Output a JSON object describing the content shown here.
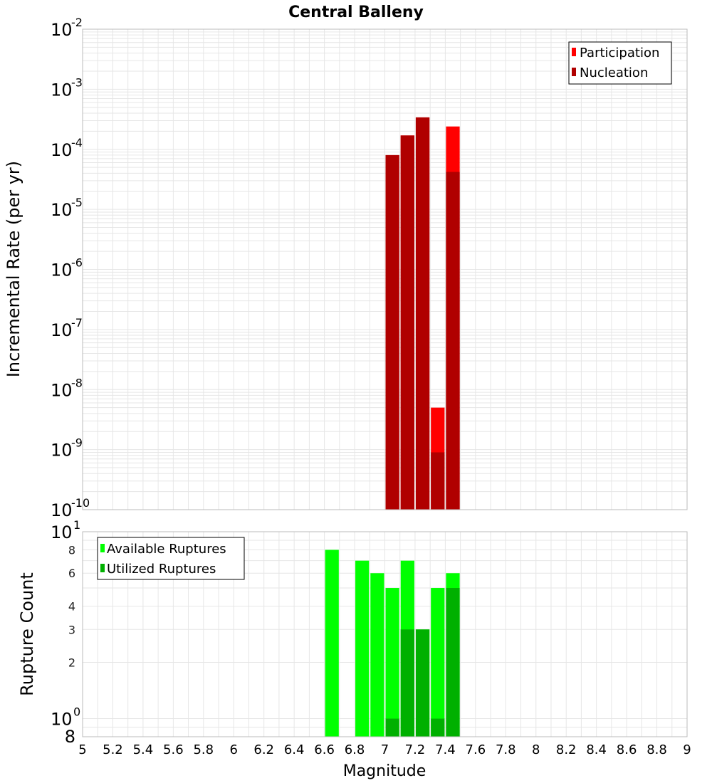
{
  "chart_data": [
    {
      "type": "bar",
      "title": "Central Balleny",
      "xlabel": "",
      "ylabel": "Incremental Rate (per yr)",
      "yscale": "log",
      "ylim": [
        1e-10,
        0.01
      ],
      "xlim": [
        5,
        9
      ],
      "bar_width": 0.1,
      "grid": true,
      "legend_position": "top-right",
      "x": [
        7.05,
        7.15,
        7.25,
        7.35,
        7.45
      ],
      "series": [
        {
          "name": "Participation",
          "color": "#ff0000",
          "values": [
            8e-05,
            0.00017,
            0.00034,
            5e-09,
            0.00024
          ]
        },
        {
          "name": "Nucleation",
          "color": "#b00000",
          "values": [
            8e-05,
            0.00017,
            0.00034,
            9e-10,
            4.2e-05
          ]
        }
      ],
      "y_tick_exponents": [
        "-2",
        "-3",
        "-4",
        "-5",
        "-6",
        "-7",
        "-8",
        "-9",
        "-10"
      ]
    },
    {
      "type": "bar",
      "title": "",
      "xlabel": "Magnitude",
      "ylabel": "Rupture Count",
      "yscale": "log",
      "ylim": [
        0.8,
        10
      ],
      "xlim": [
        5,
        9
      ],
      "bar_width": 0.1,
      "grid": true,
      "legend_position": "top-left",
      "x": [
        6.65,
        6.85,
        6.95,
        7.05,
        7.15,
        7.25,
        7.35,
        7.45
      ],
      "series": [
        {
          "name": "Available Ruptures",
          "color": "#00ff00",
          "values": [
            8,
            7,
            6,
            5,
            7,
            3,
            5,
            6
          ]
        },
        {
          "name": "Utilized Ruptures",
          "color": "#00b000",
          "values": [
            0,
            0,
            0,
            1,
            3,
            3,
            1,
            5
          ]
        }
      ],
      "y_minor_labels": [
        "8",
        "6",
        "4",
        "3",
        "2",
        "8"
      ],
      "y_major_base": "10",
      "y_major_exponents": [
        "1",
        "0"
      ],
      "x_ticks": [
        "5",
        "5.2",
        "5.4",
        "5.6",
        "5.8",
        "6",
        "6.2",
        "6.4",
        "6.6",
        "6.8",
        "7",
        "7.2",
        "7.4",
        "7.6",
        "7.8",
        "8",
        "8.2",
        "8.4",
        "8.6",
        "8.8",
        "9"
      ]
    }
  ],
  "colors": {
    "grid": "#e6e6e6",
    "frame": "#bbbbbb"
  }
}
